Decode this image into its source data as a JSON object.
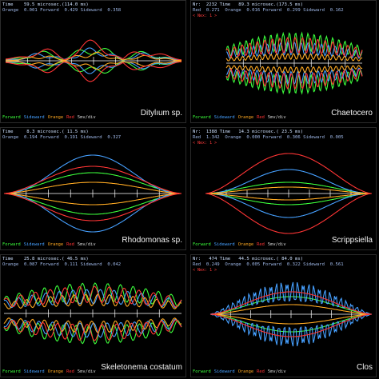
{
  "panels": [
    {
      "id": "dityIum",
      "header_line1": "Time    59.5 microsec.(114.0 ms)",
      "header_line2": "Orange  0.001 Forward  0.429 Sideward  0.358",
      "marker": "",
      "legend": {
        "forward": "Forward",
        "sideward": "Sideward",
        "orange": "Orange",
        "red": "Red",
        "scale": "5mv/div"
      },
      "species": "Ditylıum sp.",
      "colors": {
        "forward": "#3cff3c",
        "sideward": "#46a0ff",
        "orange": "#ffaa22",
        "red": "#ff3535",
        "axis": "#ffffff"
      }
    },
    {
      "id": "chaetoceros",
      "header_line1": "Nr:  2232 Time   89.3 microsec.(173.5 ms)",
      "header_line2": "Red  0.271  Orange  0.016 Forward  0.299 Sideward  0.162",
      "marker": "< Nex: 1 >",
      "legend": {
        "forward": "Forward",
        "sideward": "Sideward",
        "orange": "Orange",
        "red": "Red",
        "scale": "5mv/div"
      },
      "species": "Chaetocero",
      "colors": {
        "forward": "#3cff3c",
        "sideward": "#46a0ff",
        "orange": "#ffaa22",
        "red": "#ff3535",
        "axis": "#ffffff"
      }
    },
    {
      "id": "rhodomonas",
      "header_line1": "Time     8.3 microsec.( 11.5 ms)",
      "header_line2": "Orange  0.194 Forward  0.191 Sideward  0.327",
      "marker": "",
      "legend": {
        "forward": "Forward",
        "sideward": "Sideward",
        "orange": "Orange",
        "red": "Red",
        "scale": "5mv/div"
      },
      "species": "Rhodomonas sp.",
      "colors": {
        "forward": "#3cff3c",
        "sideward": "#46a0ff",
        "orange": "#ffaa22",
        "red": "#ff3535",
        "axis": "#ffffff"
      }
    },
    {
      "id": "scrippsiella",
      "header_line1": "Nr:  1388 Time   14.3 microsec.( 23.5 ms)",
      "header_line2": "Red  1.342  Orange  0.000 Forward  0.306 Sideward  0.005",
      "marker": "< Nex: 1 >",
      "legend": {
        "forward": "Forward",
        "sideward": "Sideward",
        "orange": "Orange",
        "red": "Red",
        "scale": "5mv/div"
      },
      "species": "Scrippsiella",
      "colors": {
        "forward": "#3cff3c",
        "sideward": "#46a0ff",
        "orange": "#ffaa22",
        "red": "#ff3535",
        "axis": "#ffffff"
      }
    },
    {
      "id": "skeletonema",
      "header_line1": "Time    25.8 microsec.( 46.5 ms)",
      "header_line2": "Orange  0.087 Forward  0.111 Sideward  0.042",
      "marker": "",
      "legend": {
        "forward": "Forward",
        "sideward": "Sideward",
        "orange": "Orange",
        "red": "Red",
        "scale": "5mv/div"
      },
      "species": "Skeletonema costatum",
      "colors": {
        "forward": "#3cff3c",
        "sideward": "#46a0ff",
        "orange": "#ffaa22",
        "red": "#ff3535",
        "axis": "#ffffff"
      }
    },
    {
      "id": "closterium",
      "header_line1": "Nr:   474 Time   44.5 microsec.( 84.0 ms)",
      "header_line2": "Red  0.249  Orange  0.005 Forward  0.322 Sideward  0.561",
      "marker": "< Nex: 1 >",
      "legend": {
        "forward": "Forward",
        "sideward": "Sideward",
        "orange": "Orange",
        "red": "Red",
        "scale": "5mv/div"
      },
      "species": "Clos",
      "colors": {
        "forward": "#3cff3c",
        "sideward": "#46a0ff",
        "orange": "#ffaa22",
        "red": "#ff3535",
        "axis": "#ffffff"
      }
    }
  ]
}
